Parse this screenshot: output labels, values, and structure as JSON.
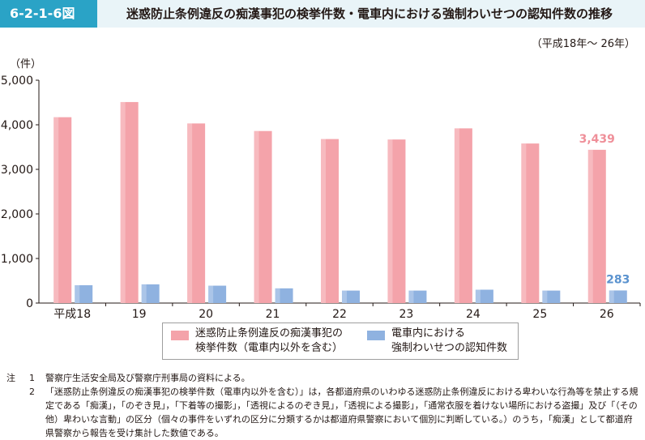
{
  "header": {
    "figure_no": "6-2-1-6図",
    "title": "迷惑防止条例違反の痴漢事犯の検挙件数・電車内における強制わいせつの認知件数の推移"
  },
  "period": "（平成18年～ 26年）",
  "unit": "（件）",
  "colors": {
    "pink": "#f4a3aa",
    "blue": "#8fb2e0",
    "accent": "#2aa3c6",
    "label_pink": "#ef8f99",
    "label_blue": "#5b93cf"
  },
  "chart_data": {
    "type": "bar",
    "categories": [
      "平成18",
      "19",
      "20",
      "21",
      "22",
      "23",
      "24",
      "25",
      "26"
    ],
    "series": [
      {
        "name": "迷惑防止条例違反の痴漢事犯の検挙件数（電車内以外を含む）",
        "values": [
          4170,
          4510,
          4030,
          3860,
          3680,
          3670,
          3920,
          3580,
          3439
        ]
      },
      {
        "name": "電車内における強制わいせつの認知件数",
        "values": [
          400,
          420,
          390,
          330,
          280,
          280,
          300,
          280,
          283
        ]
      }
    ],
    "ylim": [
      0,
      5000
    ],
    "yticks": [
      "0",
      "1,000",
      "2,000",
      "3,000",
      "4,000",
      "5,000"
    ],
    "data_labels": [
      {
        "series": 0,
        "index": 8,
        "text": "3,439"
      },
      {
        "series": 1,
        "index": 8,
        "text": "283"
      }
    ]
  },
  "legend": [
    {
      "label": "迷惑防止条例違反の痴漢事犯の\n検挙件数（電車内以外を含む）"
    },
    {
      "label": "電車内における\n強制わいせつの認知件数"
    }
  ],
  "notes": {
    "prefix": "注",
    "items": [
      {
        "num": "1",
        "text": "警察庁生活安全局及び警察庁刑事局の資料による。"
      },
      {
        "num": "2",
        "text": "「迷惑防止条例違反の痴漢事犯の検挙件数（電車内以外を含む）」は，各都道府県のいわゆる迷惑防止条例違反における卑わいな行為等を禁止する規定である「痴漢」，「のぞき見」，「下着等の撮影」，「透視によるのぞき見」，「透視による撮影」，「通常衣服を着けない場所における盗撮」及び「（その他）卑わいな言動」の区分（個々の事件をいずれの区分に分類するかは都道府県警察において個別に判断している。）のうち，「痴漢」として都道府県警察から報告を受け集計した数値である。"
      }
    ]
  }
}
